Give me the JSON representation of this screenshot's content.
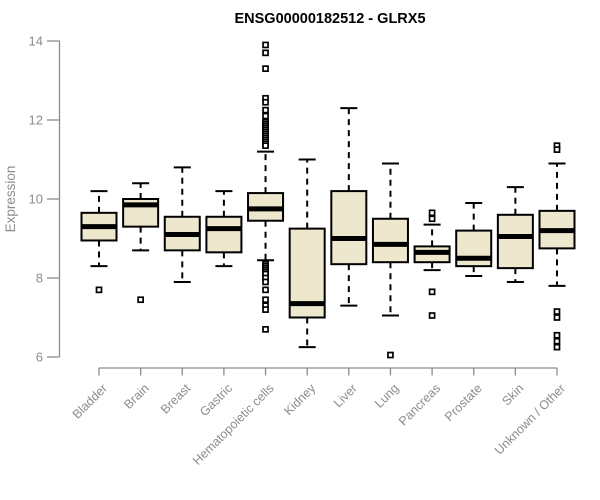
{
  "title": "ENSG00000182512 - GLRX5",
  "colors": {
    "background": "#FFFFFF",
    "box_fill": "#EDE8CD",
    "box_stroke": "#000000",
    "median": "#000000",
    "whisker": "#000000",
    "outlier_stroke": "#000000",
    "outlier_fill": "#FFFFFF",
    "axis": "#8C8C8C",
    "axis_text": "#8C8C8C",
    "title_text": "#000000"
  },
  "chart_data": {
    "type": "boxplot",
    "title": "ENSG00000182512 - GLRX5",
    "xlabel": "",
    "ylabel": "Expression",
    "ylim": [
      6,
      14
    ],
    "yticks": [
      6,
      8,
      10,
      12,
      14
    ],
    "grid": false,
    "legend": false,
    "categories": [
      "Bladder",
      "Brain",
      "Breast",
      "Gastric",
      "Hematopoietic cells",
      "Kidney",
      "Liver",
      "Lung",
      "Pancreas",
      "Prostate",
      "Skin",
      "Unknown / Other"
    ],
    "series": [
      {
        "name": "Bladder",
        "low": 8.3,
        "q1": 8.95,
        "median": 9.3,
        "q3": 9.65,
        "high": 10.2,
        "outliers": [
          7.7
        ]
      },
      {
        "name": "Brain",
        "low": 8.7,
        "q1": 9.3,
        "median": 9.85,
        "q3": 10.0,
        "high": 10.4,
        "outliers": [
          7.45
        ]
      },
      {
        "name": "Breast",
        "low": 7.9,
        "q1": 8.7,
        "median": 9.1,
        "q3": 9.55,
        "high": 10.8,
        "outliers": []
      },
      {
        "name": "Gastric",
        "low": 8.3,
        "q1": 8.65,
        "median": 9.25,
        "q3": 9.55,
        "high": 10.2,
        "outliers": []
      },
      {
        "name": "Hematopoietic cells",
        "low": 8.45,
        "q1": 9.45,
        "median": 9.75,
        "q3": 10.15,
        "high": 11.2,
        "outliers": [
          13.9,
          13.7,
          13.3,
          12.55,
          12.45,
          12.25,
          12.1,
          11.95,
          11.9,
          11.85,
          11.8,
          11.75,
          11.7,
          11.65,
          11.6,
          11.55,
          11.5,
          11.45,
          11.4,
          11.35,
          8.35,
          8.3,
          8.25,
          8.2,
          8.15,
          8.1,
          8.0,
          7.9,
          7.7,
          7.45,
          7.3,
          7.2,
          6.7
        ]
      },
      {
        "name": "Kidney",
        "low": 6.25,
        "q1": 7.0,
        "median": 7.35,
        "q3": 9.25,
        "high": 11.0,
        "outliers": []
      },
      {
        "name": "Liver",
        "low": 7.3,
        "q1": 8.35,
        "median": 9.0,
        "q3": 10.2,
        "high": 12.3,
        "outliers": []
      },
      {
        "name": "Lung",
        "low": 7.05,
        "q1": 8.4,
        "median": 8.85,
        "q3": 9.5,
        "high": 10.9,
        "outliers": [
          6.05
        ]
      },
      {
        "name": "Pancreas",
        "low": 8.2,
        "q1": 8.4,
        "median": 8.65,
        "q3": 8.8,
        "high": 9.35,
        "outliers": [
          9.65,
          9.5,
          7.65,
          7.05
        ]
      },
      {
        "name": "Prostate",
        "low": 8.05,
        "q1": 8.3,
        "median": 8.5,
        "q3": 9.2,
        "high": 9.9,
        "outliers": []
      },
      {
        "name": "Skin",
        "low": 7.9,
        "q1": 8.25,
        "median": 9.05,
        "q3": 9.6,
        "high": 10.3,
        "outliers": []
      },
      {
        "name": "Unknown / Other",
        "low": 7.8,
        "q1": 8.75,
        "median": 9.2,
        "q3": 9.7,
        "high": 10.9,
        "outliers": [
          11.35,
          11.25,
          7.15,
          7.0,
          6.55,
          6.4,
          6.25
        ]
      }
    ]
  }
}
